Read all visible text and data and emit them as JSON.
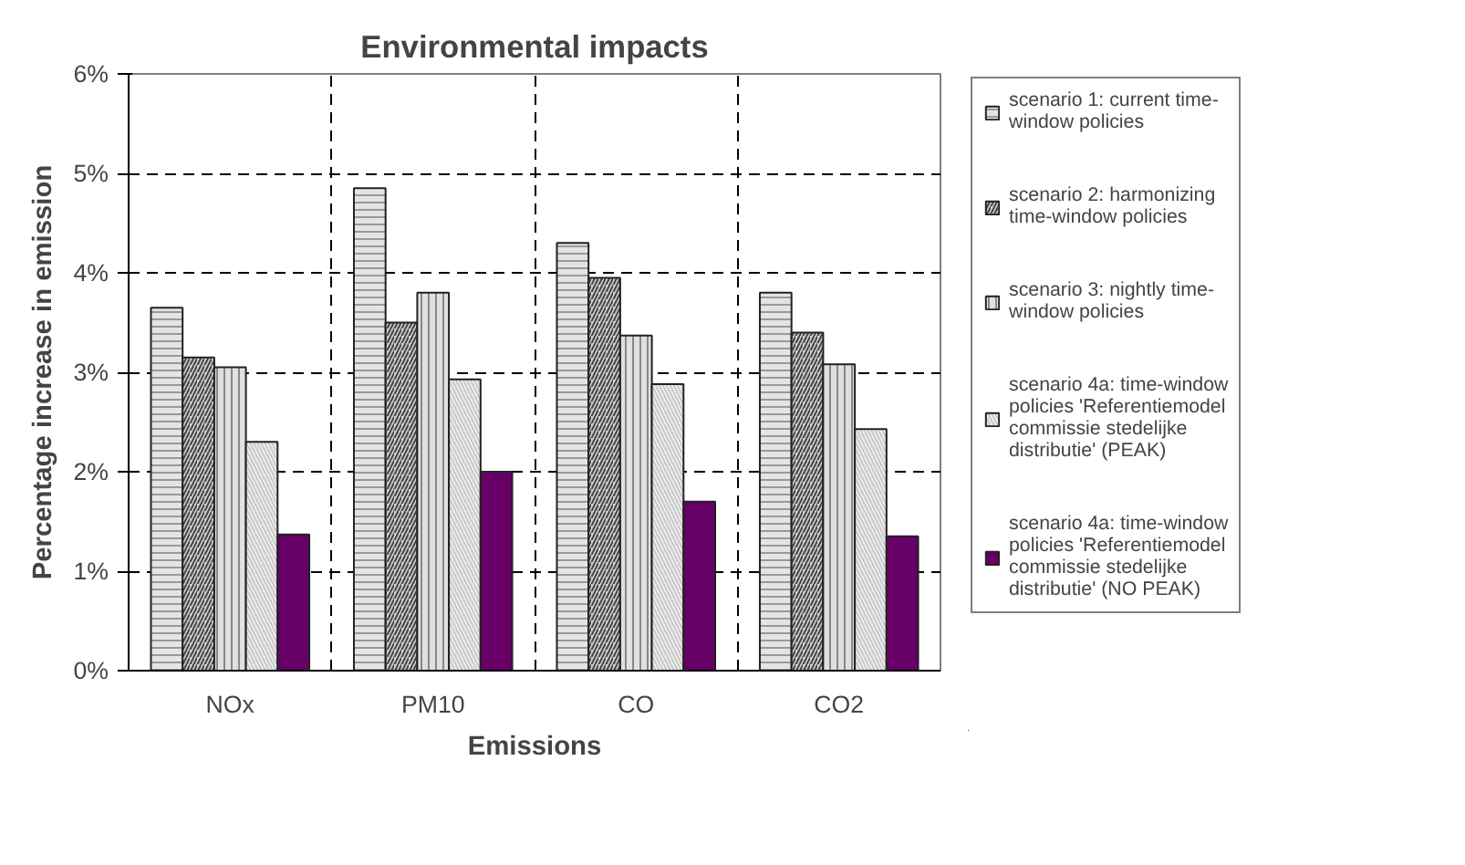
{
  "chart_data": {
    "type": "bar",
    "title": "Environmental impacts",
    "xlabel": "Emissions",
    "ylabel": "Percentage increase in emission",
    "categories": [
      "NOx",
      "PM10",
      "CO",
      "CO2"
    ],
    "series": [
      {
        "name": "scenario 1: current time-window policies",
        "color": "#e4e4e4",
        "values": [
          3.65,
          4.85,
          4.3,
          3.8
        ]
      },
      {
        "name": "scenario 2: harmonizing time-window policies",
        "color": "#d0d0d0",
        "values": [
          3.15,
          3.5,
          3.95,
          3.4
        ]
      },
      {
        "name": "scenario 3: nightly time-window policies",
        "color": "#e0e0e0",
        "values": [
          3.05,
          3.8,
          3.37,
          3.08
        ]
      },
      {
        "name": "scenario 4a: time-window policies 'Referentiemodel commissie stedelijke distributie' (PEAK)",
        "color": "#f0f0f0",
        "values": [
          2.3,
          2.93,
          2.88,
          2.43
        ]
      },
      {
        "name": "scenario 4a: time-window policies 'Referentiemodel commissie stedelijke distributie' (NO PEAK)",
        "color": "#660066",
        "values": [
          1.37,
          2.0,
          1.7,
          1.35
        ]
      }
    ],
    "ylim": [
      0,
      6
    ],
    "yticks": [
      {
        "value": 0,
        "label": "0%"
      },
      {
        "value": 1,
        "label": "1%"
      },
      {
        "value": 2,
        "label": "2%"
      },
      {
        "value": 3,
        "label": "3%"
      },
      {
        "value": 4,
        "label": "4%"
      },
      {
        "value": 5,
        "label": "5%"
      },
      {
        "value": 6,
        "label": "6%"
      }
    ],
    "grid": true,
    "legend": "right"
  }
}
